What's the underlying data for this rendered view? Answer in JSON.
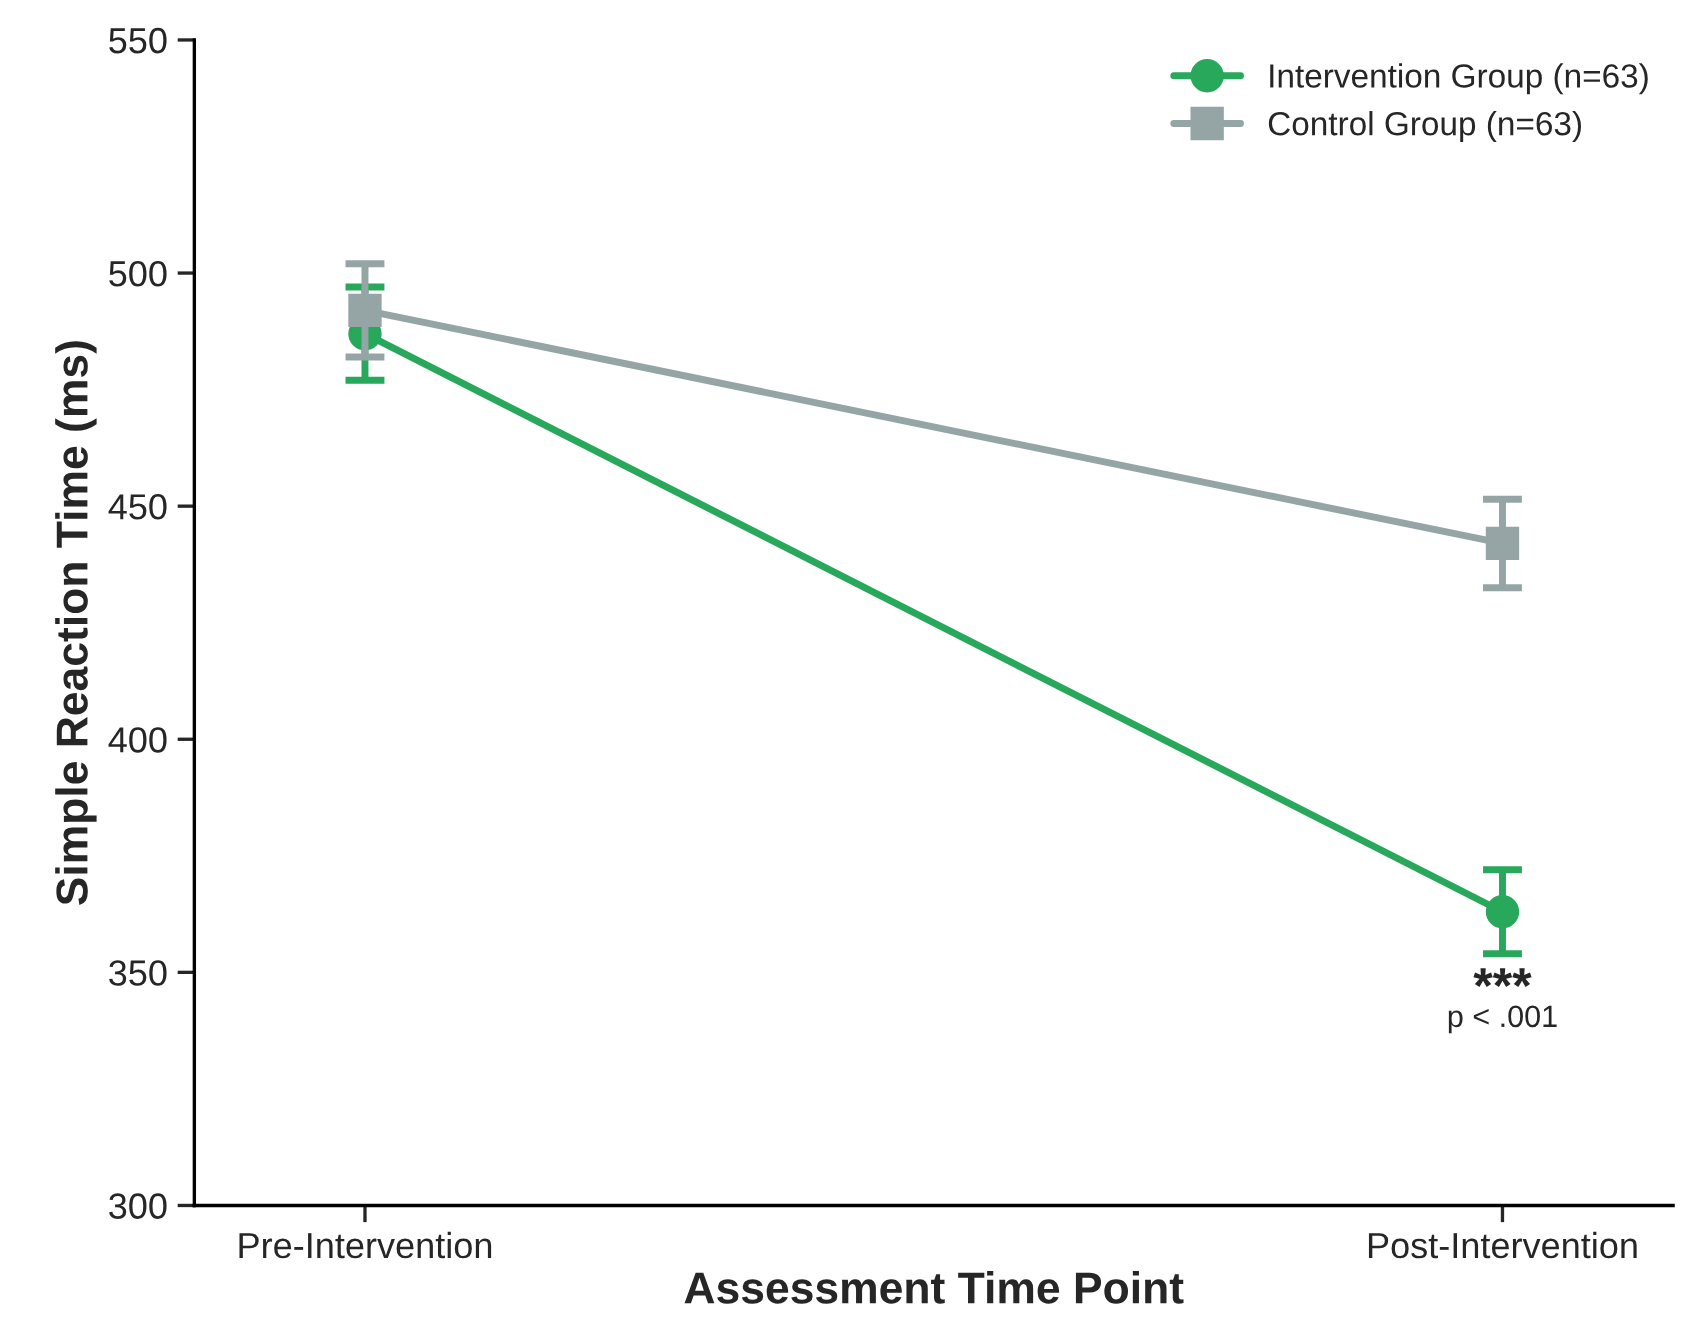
{
  "chart_data": {
    "type": "line",
    "xlabel": "Assessment Time Point",
    "ylabel": "Simple Reaction Time (ms)",
    "categories": [
      "Pre-Intervention",
      "Post-Intervention"
    ],
    "series": [
      {
        "name": "Intervention Group (n=63)",
        "color": "#27a85a",
        "values": [
          487,
          363
        ],
        "errors": [
          10,
          9
        ],
        "marker": "circle"
      },
      {
        "name": "Control Group (n=63)",
        "color": "#95a5a6",
        "values": [
          492,
          442
        ],
        "errors": [
          10,
          9.5
        ],
        "marker": "square"
      }
    ],
    "ylim": [
      300,
      550
    ],
    "yticks": [
      300,
      350,
      400,
      450,
      500,
      550
    ],
    "annotations": [
      "***",
      "p < .001"
    ],
    "legend": "top right",
    "grid": false,
    "line_style": "solid"
  }
}
